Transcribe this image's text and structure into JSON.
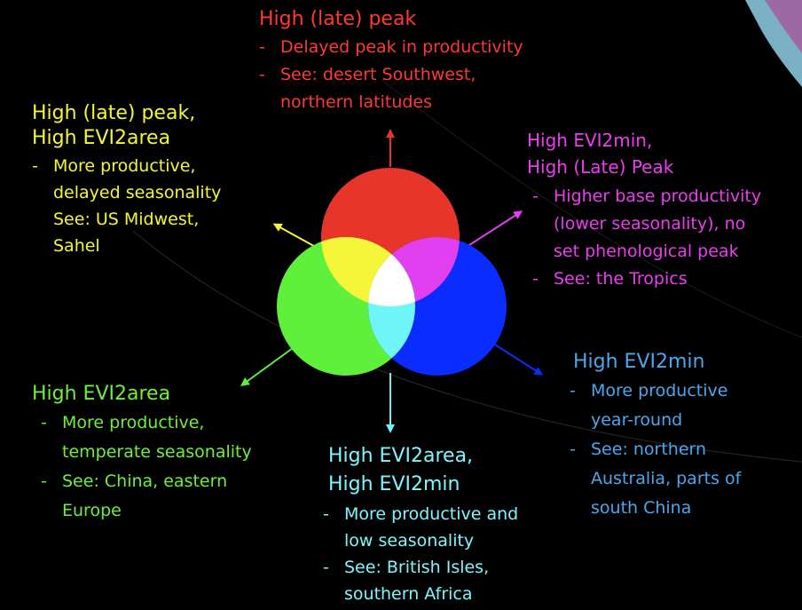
{
  "colors": {
    "red": "#e8352a",
    "green": "#5ef03a",
    "blue": "#0a2cff",
    "yellow": "#f5f53a",
    "magenta": "#e040f0",
    "cyan": "#6ff4f8",
    "white": "#ffffff",
    "sky": "#4eb0f0",
    "text_red": "#ff3a30",
    "text_yellow": "#f5f53a",
    "text_magenta": "#ee3cf0",
    "text_green": "#6ef03a",
    "text_cyan": "#7ef6ff",
    "text_blue": "#4aa8f0"
  },
  "labels": {
    "red": {
      "head": [
        "High (late) peak"
      ],
      "bullets": [
        [
          "Delayed peak in productivity"
        ],
        [
          "See: desert Southwest,",
          "northern latitudes"
        ]
      ]
    },
    "yellow": {
      "head": [
        "High (late) peak,",
        "High EVI2area"
      ],
      "bullets": [
        [
          "More productive,",
          "delayed seasonality",
          "See: US Midwest,",
          "Sahel"
        ]
      ]
    },
    "magenta": {
      "head": [
        "High EVI2min,",
        "High (Late) Peak"
      ],
      "bullets": [
        [
          "Higher base productivity",
          "(lower seasonality), no",
          "set phenological peak"
        ],
        [
          "See: the Tropics"
        ]
      ]
    },
    "blue": {
      "head": [
        "High EVI2min"
      ],
      "bullets": [
        [
          "More productive",
          "year-round"
        ],
        [
          "See: northern",
          "Australia, parts of",
          "south China"
        ]
      ]
    },
    "green": {
      "head": [
        "High EVI2area"
      ],
      "bullets": [
        [
          "More productive,",
          "temperate seasonality"
        ],
        [
          "See: China, eastern",
          "Europe"
        ]
      ]
    },
    "cyan": {
      "head": [
        "High EVI2area,",
        "High EVI2min"
      ],
      "bullets": [
        [
          "More productive and",
          "low seasonality"
        ],
        [
          "See: British Isles,",
          "southern Africa"
        ]
      ]
    }
  }
}
